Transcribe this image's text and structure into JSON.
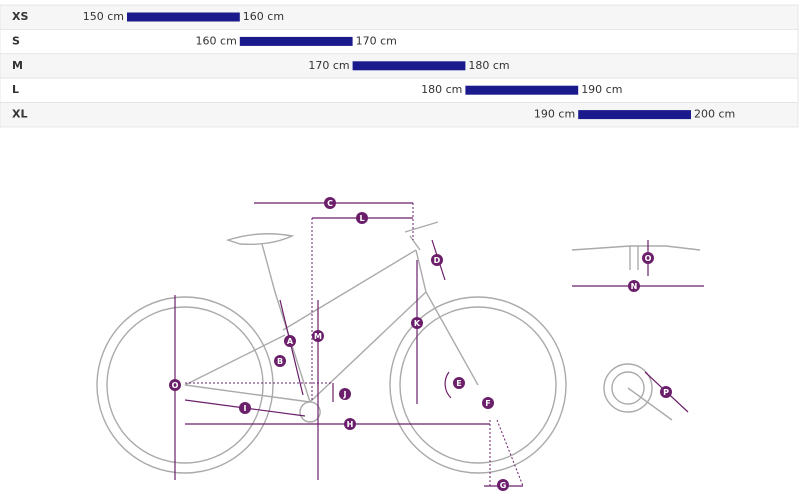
{
  "size_chart": {
    "rows": [
      {
        "size": "XS",
        "min": 150,
        "max": 160,
        "min_label": "150 cm",
        "max_label": "160 cm"
      },
      {
        "size": "S",
        "min": 160,
        "max": 170,
        "min_label": "160 cm",
        "max_label": "170 cm"
      },
      {
        "size": "M",
        "min": 170,
        "max": 180,
        "min_label": "170 cm",
        "max_label": "180 cm"
      },
      {
        "size": "L",
        "min": 180,
        "max": 190,
        "min_label": "180 cm",
        "max_label": "190 cm"
      },
      {
        "size": "XL",
        "min": 190,
        "max": 200,
        "min_label": "190 cm",
        "max_label": "200 cm"
      }
    ],
    "bar_color": "#1a1a8c"
  },
  "diagram": {
    "labels": [
      "C",
      "L",
      "D",
      "K",
      "M",
      "A",
      "B",
      "O",
      "J",
      "E",
      "F",
      "I",
      "H",
      "G",
      "O",
      "N",
      "P"
    ]
  }
}
